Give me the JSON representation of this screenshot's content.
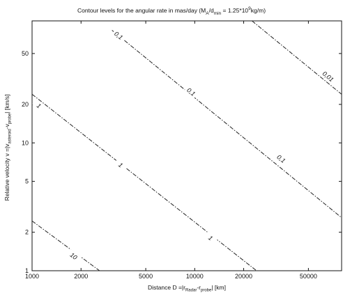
{
  "chart_data": {
    "type": "line",
    "title": "Contour levels for the angular rate in mas/day (M",
    "title_parts": {
      "pre": "Contour levels for the angular rate in mas/day (M",
      "sub1": "A",
      "mid": "/d",
      "sub2": "min",
      "post1": " = 1.25*10",
      "sup": "9",
      "post2": "kg/m)"
    },
    "xlabel_parts": {
      "pre": "Distance D =|r",
      "sub1": "Radar",
      "mid": "-r",
      "sub2": "probe",
      "post": "| [km]"
    },
    "ylabel_parts": {
      "pre": "Relative velocity v =|v",
      "sub1": "asteroid",
      "mid": "-v",
      "sub2": "probe",
      "post": "| [km/s]"
    },
    "x_scale": "log",
    "y_scale": "log",
    "xlim": [
      1000,
      80000
    ],
    "ylim": [
      1,
      90
    ],
    "x_ticks": [
      1000,
      2000,
      5000,
      10000,
      20000,
      50000
    ],
    "x_tick_labels": [
      "1000",
      "2000",
      "5000",
      "10000",
      "20000",
      "50000"
    ],
    "y_ticks": [
      1,
      2,
      5,
      10,
      20,
      50
    ],
    "y_tick_labels": [
      "1",
      "2",
      "5",
      "10",
      "20",
      "50"
    ],
    "grid": false,
    "line_style": "dash-dot",
    "series": [
      {
        "name": "10",
        "x": [
          1000,
          2600
        ],
        "y": [
          2.45,
          1.0
        ],
        "label": "10",
        "label_pos": [
          1800,
          1.3
        ]
      },
      {
        "name": "1",
        "x": [
          1000,
          24000
        ],
        "y": [
          24,
          1.0
        ],
        "label": "1",
        "label_pos": [
          3500,
          6.7
        ]
      },
      {
        "name": "1b",
        "x": [
          1000,
          24000
        ],
        "y": [
          24,
          1.0
        ],
        "label": "1",
        "label_pos": [
          12500,
          1.8
        ]
      },
      {
        "name": "1c",
        "x": [
          1000,
          24000
        ],
        "y": [
          24,
          1.0
        ],
        "label": "1",
        "label_pos": [
          1100,
          19.5
        ]
      },
      {
        "name": "0.1",
        "x": [
          3100,
          80000
        ],
        "y": [
          76,
          2.6
        ],
        "label": "0,1",
        "label_pos": [
          3400,
          69
        ]
      },
      {
        "name": "0.1b",
        "x": [
          3100,
          80000
        ],
        "y": [
          76,
          2.6
        ],
        "label": "0,1",
        "label_pos": [
          9500,
          25
        ]
      },
      {
        "name": "0.1c",
        "x": [
          3100,
          80000
        ],
        "y": [
          76,
          2.6
        ],
        "label": "0,1",
        "label_pos": [
          34000,
          7.5
        ]
      },
      {
        "name": "0.01",
        "x": [
          22500,
          80000
        ],
        "y": [
          90,
          24
        ],
        "label": "0,01",
        "label_pos": [
          66000,
          33
        ]
      }
    ]
  }
}
